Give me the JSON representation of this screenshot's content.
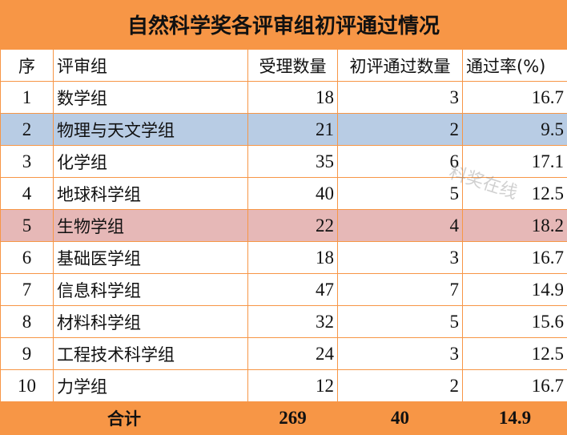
{
  "title": "自然科学奖各评审组初评通过情况",
  "headers": [
    "序",
    "评审组",
    "受理数量",
    "初评通过数量",
    "通过率(%)"
  ],
  "rows": [
    {
      "no": "1",
      "group": "数学组",
      "accepted": "18",
      "passed": "3",
      "rate": "16.7",
      "highlight": ""
    },
    {
      "no": "2",
      "group": "物理与天文学组",
      "accepted": "21",
      "passed": "2",
      "rate": "9.5",
      "highlight": "blue"
    },
    {
      "no": "3",
      "group": "化学组",
      "accepted": "35",
      "passed": "6",
      "rate": "17.1",
      "highlight": ""
    },
    {
      "no": "4",
      "group": "地球科学组",
      "accepted": "40",
      "passed": "5",
      "rate": "12.5",
      "highlight": ""
    },
    {
      "no": "5",
      "group": "生物学组",
      "accepted": "22",
      "passed": "4",
      "rate": "18.2",
      "highlight": "pink"
    },
    {
      "no": "6",
      "group": "基础医学组",
      "accepted": "18",
      "passed": "3",
      "rate": "16.7",
      "highlight": ""
    },
    {
      "no": "7",
      "group": "信息科学组",
      "accepted": "47",
      "passed": "7",
      "rate": "14.9",
      "highlight": ""
    },
    {
      "no": "8",
      "group": "材料科学组",
      "accepted": "32",
      "passed": "5",
      "rate": "15.6",
      "highlight": ""
    },
    {
      "no": "9",
      "group": "工程技术科学组",
      "accepted": "24",
      "passed": "3",
      "rate": "12.5",
      "highlight": ""
    },
    {
      "no": "10",
      "group": "力学组",
      "accepted": "12",
      "passed": "2",
      "rate": "16.7",
      "highlight": ""
    }
  ],
  "total": {
    "label": "合计",
    "accepted": "269",
    "passed": "40",
    "rate": "14.9"
  },
  "watermark": "科奖在线",
  "colors": {
    "header_orange": "#F79646",
    "highlight_blue": "#B8CCE4",
    "highlight_pink": "#E6B8B7"
  }
}
